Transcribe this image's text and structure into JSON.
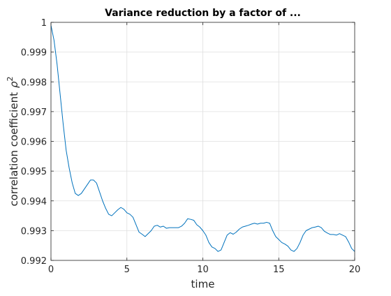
{
  "chart_data": {
    "type": "line",
    "title": "Variance reduction by a factor of ...",
    "xlabel": "time",
    "ylabel": "correlation coefficient",
    "ylabel_symbol": "ρ",
    "ylabel_superscript": "2",
    "xlim": [
      0,
      20
    ],
    "ylim": [
      0.992,
      1
    ],
    "x_ticks": [
      0,
      5,
      10,
      15,
      20
    ],
    "x_tick_labels": [
      "0",
      "5",
      "10",
      "15",
      "20"
    ],
    "y_ticks": [
      0.992,
      0.993,
      0.994,
      0.995,
      0.996,
      0.997,
      0.998,
      0.999,
      1
    ],
    "y_tick_labels": [
      "0.992",
      "0.993",
      "0.994",
      "0.995",
      "0.996",
      "0.997",
      "0.998",
      "0.999",
      "1"
    ],
    "grid": true,
    "colors": {
      "line": "#0072BD",
      "grid": "#dfdfdf",
      "axes": "#262626"
    },
    "series": [
      {
        "x": [
          0,
          0.2,
          0.4,
          0.6,
          0.8,
          1.0,
          1.2,
          1.4,
          1.6,
          1.8,
          2.0,
          2.2,
          2.4,
          2.6,
          2.8,
          3.0,
          3.2,
          3.4,
          3.6,
          3.8,
          4.0,
          4.2,
          4.4,
          4.6,
          4.8,
          5.0,
          5.2,
          5.4,
          5.6,
          5.8,
          6.0,
          6.2,
          6.4,
          6.6,
          6.8,
          7.0,
          7.2,
          7.4,
          7.6,
          7.8,
          8.0,
          8.2,
          8.4,
          8.6,
          8.8,
          9.0,
          9.2,
          9.4,
          9.6,
          9.8,
          10.0,
          10.2,
          10.4,
          10.6,
          10.8,
          11.0,
          11.2,
          11.4,
          11.6,
          11.8,
          12.0,
          12.2,
          12.4,
          12.6,
          12.8,
          13.0,
          13.2,
          13.4,
          13.6,
          13.8,
          14.0,
          14.2,
          14.4,
          14.6,
          14.8,
          15.0,
          15.2,
          15.4,
          15.6,
          15.8,
          16.0,
          16.2,
          16.4,
          16.6,
          16.8,
          17.0,
          17.2,
          17.4,
          17.6,
          17.8,
          18.0,
          18.2,
          18.4,
          18.6,
          18.8,
          19.0,
          19.2,
          19.4,
          19.6,
          19.8,
          20.0
        ],
        "values": [
          0.9999,
          0.9994,
          0.9986,
          0.9976,
          0.9966,
          0.9957,
          0.9951,
          0.9946,
          0.99425,
          0.99418,
          0.99425,
          0.9944,
          0.99455,
          0.9947,
          0.9947,
          0.9946,
          0.9943,
          0.994,
          0.99375,
          0.99355,
          0.9935,
          0.9936,
          0.9937,
          0.99378,
          0.99372,
          0.9936,
          0.99355,
          0.99345,
          0.9932,
          0.99295,
          0.99288,
          0.9928,
          0.9929,
          0.993,
          0.99315,
          0.99318,
          0.99312,
          0.99315,
          0.99308,
          0.9931,
          0.9931,
          0.9931,
          0.9931,
          0.99315,
          0.99325,
          0.9934,
          0.99338,
          0.99335,
          0.9932,
          0.99312,
          0.993,
          0.99285,
          0.9926,
          0.99245,
          0.9924,
          0.9923,
          0.99235,
          0.9926,
          0.99285,
          0.99293,
          0.99288,
          0.99295,
          0.99305,
          0.99312,
          0.99315,
          0.99318,
          0.99322,
          0.99325,
          0.99322,
          0.99325,
          0.99325,
          0.99328,
          0.99325,
          0.993,
          0.9928,
          0.9927,
          0.9926,
          0.99255,
          0.99248,
          0.99235,
          0.9923,
          0.9924,
          0.9926,
          0.99285,
          0.993,
          0.99305,
          0.9931,
          0.99312,
          0.99315,
          0.9931,
          0.99298,
          0.99292,
          0.99287,
          0.99287,
          0.99285,
          0.9929,
          0.99285,
          0.9928,
          0.99262,
          0.9924,
          0.9923
        ]
      }
    ]
  }
}
